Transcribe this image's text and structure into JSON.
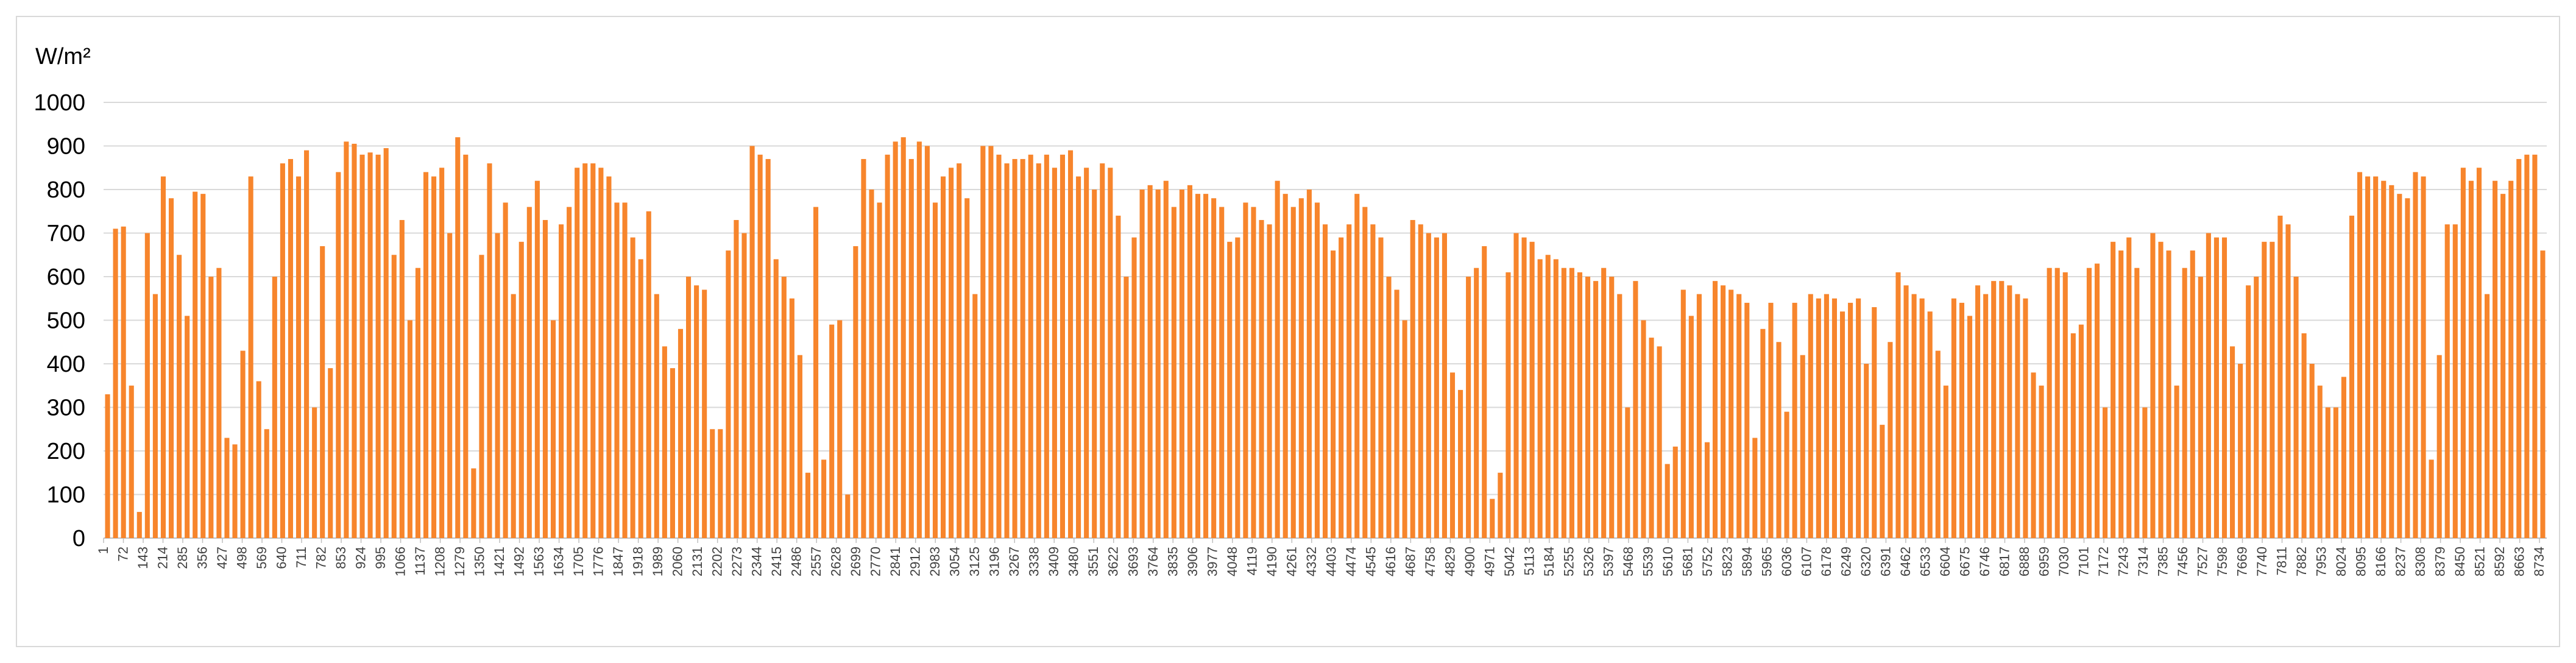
{
  "chart_data": {
    "type": "bar",
    "title": "",
    "ylabel": "W/m²",
    "xlabel": "",
    "ylim": [
      0,
      1000
    ],
    "yticks": [
      0,
      100,
      200,
      300,
      400,
      500,
      600,
      700,
      800,
      900,
      1000
    ],
    "x_range": [
      1,
      8760
    ],
    "xtick_labels": [
      "1",
      "72",
      "143",
      "214",
      "285",
      "356",
      "427",
      "498",
      "569",
      "640",
      "711",
      "782",
      "853",
      "924",
      "995",
      "1066",
      "1137",
      "1208",
      "1279",
      "1350",
      "1421",
      "1492",
      "1563",
      "1634",
      "1705",
      "1776",
      "1847",
      "1918",
      "1989",
      "2060",
      "2131",
      "2202",
      "2273",
      "2344",
      "2415",
      "2486",
      "2557",
      "2628",
      "2699",
      "2770",
      "2841",
      "2912",
      "2983",
      "3054",
      "3125",
      "3196",
      "3267",
      "3338",
      "3409",
      "3480",
      "3551",
      "3622",
      "3693",
      "3764",
      "3835",
      "3906",
      "3977",
      "4048",
      "4119",
      "4190",
      "4261",
      "4332",
      "4403",
      "4474",
      "4545",
      "4616",
      "4687",
      "4758",
      "4829",
      "4900",
      "4971",
      "5042",
      "5113",
      "5184",
      "5255",
      "5326",
      "5397",
      "5468",
      "5539",
      "5610",
      "5681",
      "5752",
      "5823",
      "5894",
      "5965",
      "6036",
      "6107",
      "6178",
      "6249",
      "6320",
      "6391",
      "6462",
      "6533",
      "6604",
      "6675",
      "6746",
      "6817",
      "6888",
      "6959",
      "7030",
      "7101",
      "7172",
      "7243",
      "7314",
      "7385",
      "7456",
      "7527",
      "7598",
      "7669",
      "7740",
      "7811",
      "7882",
      "7953",
      "8024",
      "8095",
      "8166",
      "8237",
      "8308",
      "8379",
      "8450",
      "8521",
      "8592",
      "8663",
      "8734"
    ],
    "series": [
      {
        "color": "#f7852c",
        "daily_peak_values": [
          330,
          710,
          715,
          350,
          60,
          700,
          560,
          830,
          780,
          650,
          510,
          795,
          790,
          600,
          620,
          230,
          215,
          430,
          830,
          360,
          250,
          600,
          860,
          870,
          830,
          890,
          300,
          670,
          390,
          840,
          910,
          905,
          880,
          885,
          880,
          895,
          650,
          730,
          500,
          620,
          840,
          830,
          850,
          700,
          920,
          880,
          160,
          650,
          860,
          700,
          770,
          560,
          680,
          760,
          820,
          730,
          500,
          720,
          760,
          850,
          860,
          860,
          850,
          830,
          770,
          770,
          690,
          640,
          750,
          560,
          440,
          390,
          480,
          600,
          580,
          570,
          250,
          250,
          660,
          730,
          700,
          900,
          880,
          870,
          640,
          600,
          550,
          420,
          150,
          760,
          180,
          490,
          500,
          100,
          670,
          870,
          800,
          770,
          880,
          910,
          920,
          870,
          910,
          900,
          770,
          830,
          850,
          860,
          780,
          560,
          900,
          900,
          880,
          860,
          870,
          870,
          880,
          860,
          880,
          850,
          880,
          890,
          830,
          850,
          800,
          860,
          850,
          740,
          600,
          690,
          800,
          810,
          800,
          820,
          760,
          800,
          810,
          790,
          790,
          780,
          760,
          680,
          690,
          770,
          760,
          730,
          720,
          820,
          790,
          760,
          780,
          800,
          770,
          720,
          660,
          690,
          720,
          790,
          760,
          720,
          690,
          600,
          570,
          500,
          730,
          720,
          700,
          690,
          700,
          380,
          340,
          600,
          620,
          670,
          90,
          150,
          610,
          700,
          690,
          680,
          640,
          650,
          640,
          620,
          620,
          610,
          600,
          590,
          620,
          600,
          560,
          300,
          590,
          500,
          460,
          440,
          170,
          210,
          570,
          510,
          560,
          220,
          590,
          580,
          570,
          560,
          540,
          230,
          480,
          540,
          450,
          290,
          540,
          420,
          560,
          550,
          560,
          550,
          520,
          540,
          550,
          400,
          530,
          260,
          450,
          610,
          580,
          560,
          550,
          520,
          430,
          350,
          550,
          540,
          510,
          580,
          560,
          590,
          590,
          580,
          560,
          550,
          380,
          350,
          620,
          620,
          610,
          470,
          490,
          620,
          630,
          300,
          680,
          660,
          690,
          620,
          300,
          700,
          680,
          660,
          350,
          620,
          660,
          600,
          700,
          690,
          690,
          440,
          400,
          580,
          600,
          680,
          680,
          740,
          720,
          600,
          470,
          400,
          350,
          300,
          300,
          370,
          740,
          840,
          830,
          830,
          820,
          810,
          790,
          780,
          840,
          830,
          180,
          420,
          720,
          720,
          850,
          820,
          850,
          560,
          820,
          790,
          820,
          870,
          880,
          880,
          660
        ]
      }
    ]
  }
}
